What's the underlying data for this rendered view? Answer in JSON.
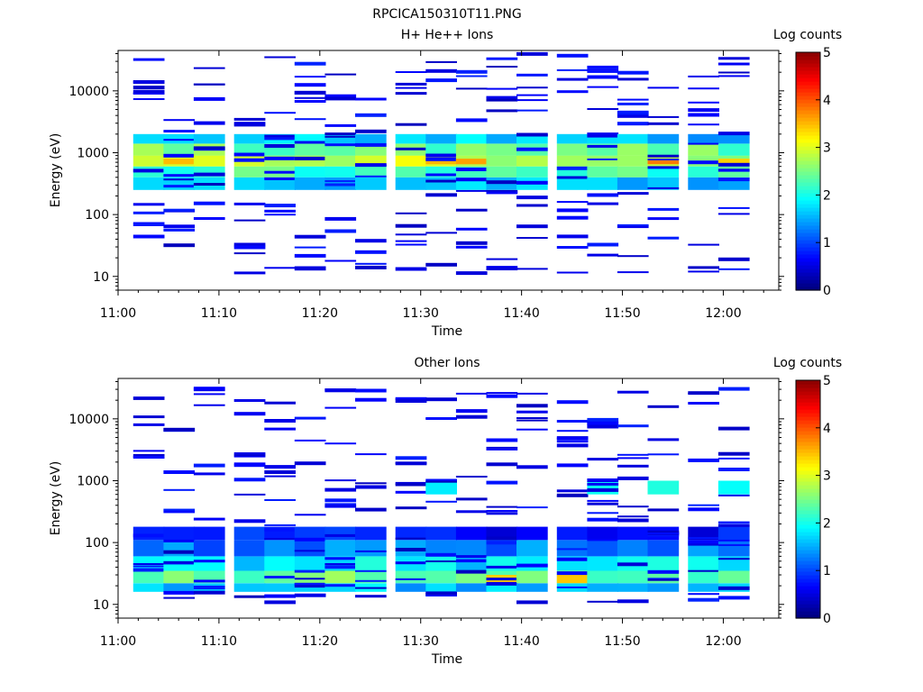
{
  "figure_title": "RPCICA150310T11.PNG",
  "chart_data": [
    {
      "type": "heatmap",
      "title": "H+ He++ Ions",
      "xlabel": "Time",
      "ylabel": "Energy (eV)",
      "x_ticks": [
        "11:00",
        "11:10",
        "11:20",
        "11:30",
        "11:40",
        "11:50",
        "12:00"
      ],
      "y_ticks": [
        "10",
        "100",
        "1000",
        "10000"
      ],
      "y_scale": "log",
      "y_range": [
        6,
        45000
      ],
      "time_columns": [
        "11:03",
        "11:06",
        "11:09",
        "11:13",
        "11:16",
        "11:19",
        "11:22",
        "11:25",
        "11:29",
        "11:32",
        "11:35",
        "11:38",
        "11:41",
        "11:45",
        "11:48",
        "11:51",
        "11:54",
        "11:58",
        "12:01"
      ],
      "colorbar_label": "Log counts",
      "colorbar_ticks": [
        "0",
        "1",
        "2",
        "3",
        "4",
        "5"
      ],
      "colorbar_range": [
        0,
        5
      ],
      "log_counts_profiles": [
        {
          "columns": [
            1,
            2,
            3,
            4,
            5,
            6,
            7,
            8,
            9,
            10,
            11,
            12,
            13,
            14,
            15,
            16,
            17,
            18,
            19
          ],
          "bands": [
            [
              250,
              400,
              1.6
            ],
            [
              400,
              600,
              2.2
            ],
            [
              600,
              900,
              2.8
            ],
            [
              900,
              1400,
              2.4
            ],
            [
              1400,
              2000,
              1.6
            ]
          ]
        },
        {
          "columns": [
            2,
            10,
            11,
            17,
            19
          ],
          "bands": [
            [
              650,
              800,
              3.6
            ]
          ]
        }
      ],
      "sparse_hits_log_counts": 0.3,
      "grid": false
    },
    {
      "type": "heatmap",
      "title": "Other Ions",
      "xlabel": "Time",
      "ylabel": "Energy (eV)",
      "x_ticks": [
        "11:00",
        "11:10",
        "11:20",
        "11:30",
        "11:40",
        "11:50",
        "12:00"
      ],
      "y_ticks": [
        "10",
        "100",
        "1000",
        "10000"
      ],
      "y_scale": "log",
      "y_range": [
        6,
        45000
      ],
      "time_columns": [
        "11:03",
        "11:06",
        "11:09",
        "11:13",
        "11:16",
        "11:19",
        "11:22",
        "11:25",
        "11:29",
        "11:32",
        "11:35",
        "11:38",
        "11:41",
        "11:45",
        "11:48",
        "11:51",
        "11:54",
        "11:58",
        "12:01"
      ],
      "colorbar_label": "Log counts",
      "colorbar_ticks": [
        "0",
        "1",
        "2",
        "3",
        "4",
        "5"
      ],
      "colorbar_range": [
        0,
        5
      ],
      "log_counts_profiles": [
        {
          "columns": [
            1,
            2,
            3,
            4,
            5,
            6,
            7,
            8,
            9,
            10,
            11,
            12,
            13,
            14,
            15,
            16,
            17,
            18,
            19
          ],
          "bands": [
            [
              16,
              22,
              1.6
            ],
            [
              22,
              35,
              2.4
            ],
            [
              35,
              60,
              1.8
            ],
            [
              60,
              110,
              1.2
            ],
            [
              110,
              180,
              0.7
            ]
          ]
        },
        {
          "columns": [
            10,
            15,
            17,
            19
          ],
          "bands": [
            [
              600,
              1000,
              1.8
            ]
          ]
        },
        {
          "columns": [
            12,
            14
          ],
          "bands": [
            [
              22,
              30,
              3.2
            ]
          ]
        }
      ],
      "sparse_hits_log_counts": 0.3,
      "grid": false
    }
  ]
}
